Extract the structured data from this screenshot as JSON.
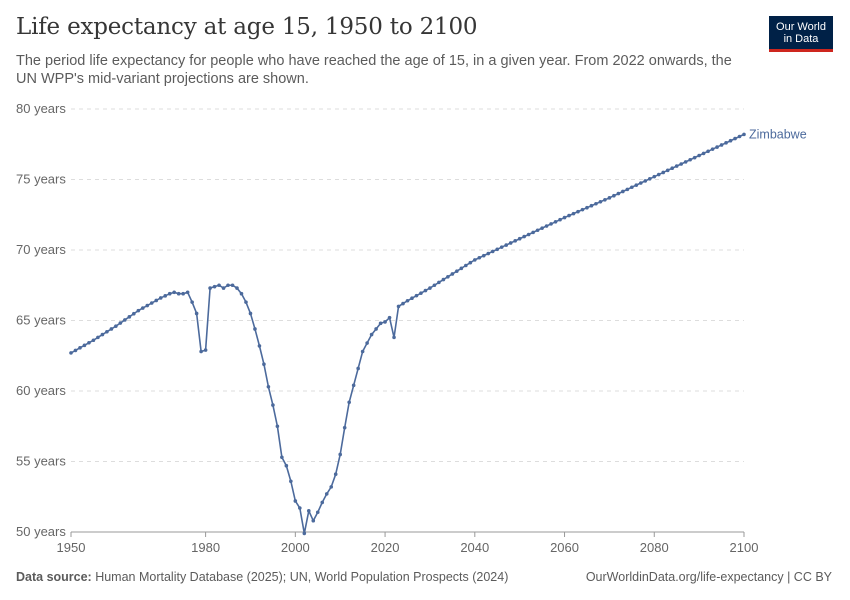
{
  "header": {
    "title": "Life expectancy at age 15, 1950 to 2100",
    "subtitle": "The period life expectancy for people who have reached the age of 15, in a given year. From 2022 onwards, the UN WPP's mid-variant projections are shown."
  },
  "logo": {
    "line1": "Our World",
    "line2": "in Data"
  },
  "footer": {
    "source_label": "Data source:",
    "source_text": " Human Mortality Database (2025); UN, World Population Prospects (2024)",
    "url": "OurWorldinData.org/life-expectancy | CC BY"
  },
  "colors": {
    "series": "#4c6a9c",
    "grid": "#dddddd",
    "axis": "#999999",
    "logo_bg": "#002147",
    "logo_accent": "#ce261e"
  },
  "chart_data": {
    "type": "line",
    "title": "Life expectancy at age 15, 1950 to 2100",
    "xlim": [
      1950,
      2100
    ],
    "ylim": [
      50,
      80
    ],
    "x_ticks": [
      1950,
      1980,
      2000,
      2020,
      2040,
      2060,
      2080,
      2100
    ],
    "y_ticks": [
      50,
      55,
      60,
      65,
      70,
      75,
      80
    ],
    "y_tick_labels": [
      "50 years",
      "55 years",
      "60 years",
      "65 years",
      "70 years",
      "75 years",
      "80 years"
    ],
    "grid": true,
    "legend": "end-of-line label",
    "series": [
      {
        "name": "Zimbabwe",
        "anchors": [
          [
            1950,
            62.7
          ],
          [
            1955,
            63.6
          ],
          [
            1960,
            64.6
          ],
          [
            1965,
            65.7
          ],
          [
            1970,
            66.6
          ],
          [
            1972,
            66.9
          ],
          [
            1973,
            67.0
          ],
          [
            1974,
            66.9
          ],
          [
            1975,
            66.9
          ],
          [
            1976,
            67.0
          ],
          [
            1977,
            66.3
          ],
          [
            1978,
            65.5
          ],
          [
            1979,
            62.8
          ],
          [
            1980,
            62.9
          ],
          [
            1981,
            67.3
          ],
          [
            1982,
            67.4
          ],
          [
            1983,
            67.5
          ],
          [
            1984,
            67.3
          ],
          [
            1985,
            67.5
          ],
          [
            1986,
            67.5
          ],
          [
            1987,
            67.3
          ],
          [
            1988,
            66.9
          ],
          [
            1989,
            66.3
          ],
          [
            1990,
            65.5
          ],
          [
            1991,
            64.4
          ],
          [
            1992,
            63.2
          ],
          [
            1993,
            61.9
          ],
          [
            1994,
            60.3
          ],
          [
            1995,
            59.0
          ],
          [
            1996,
            57.5
          ],
          [
            1997,
            55.3
          ],
          [
            1998,
            54.7
          ],
          [
            1999,
            53.6
          ],
          [
            2000,
            52.2
          ],
          [
            2001,
            51.7
          ],
          [
            2002,
            49.9
          ],
          [
            2003,
            51.5
          ],
          [
            2004,
            50.8
          ],
          [
            2005,
            51.4
          ],
          [
            2006,
            52.1
          ],
          [
            2007,
            52.7
          ],
          [
            2008,
            53.2
          ],
          [
            2009,
            54.1
          ],
          [
            2010,
            55.5
          ],
          [
            2011,
            57.4
          ],
          [
            2012,
            59.2
          ],
          [
            2013,
            60.4
          ],
          [
            2014,
            61.6
          ],
          [
            2015,
            62.8
          ],
          [
            2016,
            63.4
          ],
          [
            2017,
            64.0
          ],
          [
            2018,
            64.4
          ],
          [
            2019,
            64.8
          ],
          [
            2020,
            64.9
          ],
          [
            2021,
            65.2
          ],
          [
            2022,
            63.8
          ],
          [
            2023,
            66.0
          ],
          [
            2025,
            66.4
          ],
          [
            2030,
            67.3
          ],
          [
            2040,
            69.3
          ],
          [
            2050,
            70.8
          ],
          [
            2060,
            72.3
          ],
          [
            2070,
            73.7
          ],
          [
            2080,
            75.2
          ],
          [
            2090,
            76.7
          ],
          [
            2100,
            78.2
          ]
        ]
      }
    ]
  }
}
